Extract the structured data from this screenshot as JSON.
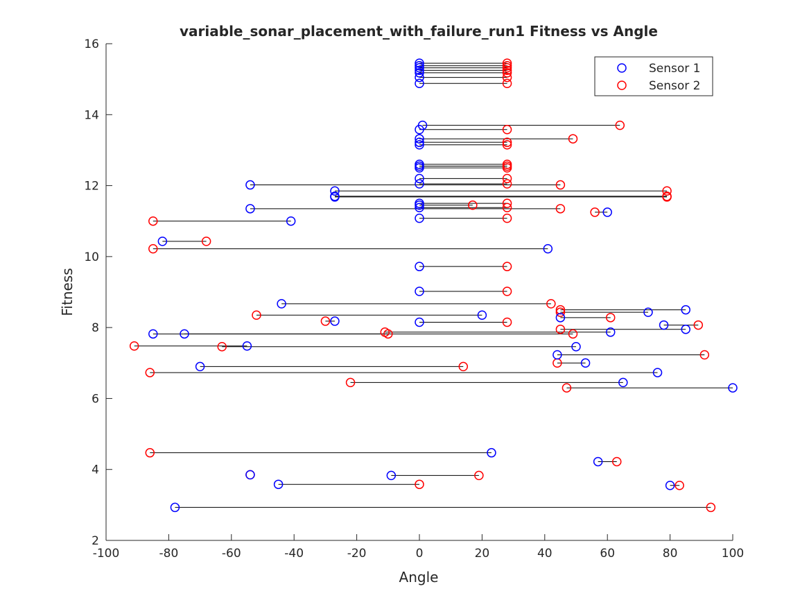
{
  "chart_data": {
    "type": "scatter",
    "title": "variable_sonar_placement_with_failure_run1 Fitness vs Angle",
    "xlabel": "Angle",
    "ylabel": "Fitness",
    "xlim": [
      -100,
      100
    ],
    "ylim": [
      2,
      16
    ],
    "xticks": [
      -100,
      -80,
      -60,
      -40,
      -20,
      0,
      20,
      40,
      60,
      80,
      100
    ],
    "yticks": [
      2,
      4,
      6,
      8,
      10,
      12,
      14,
      16
    ],
    "grid": false,
    "legend_position": "top-right",
    "colors": {
      "sensor1": "#0000ff",
      "sensor2": "#ff0000",
      "connector": "#000000",
      "axis": "#262626"
    },
    "series": [
      {
        "name": "Sensor 1",
        "color": "#0000ff"
      },
      {
        "name": "Sensor 2",
        "color": "#ff0000"
      }
    ],
    "pairs": [
      {
        "fitness": 15.45,
        "sensor1": 0,
        "sensor2": 28
      },
      {
        "fitness": 15.38,
        "sensor1": 0,
        "sensor2": 28
      },
      {
        "fitness": 15.32,
        "sensor1": 0,
        "sensor2": 28
      },
      {
        "fitness": 15.25,
        "sensor1": 0,
        "sensor2": 28
      },
      {
        "fitness": 15.18,
        "sensor1": 0,
        "sensor2": 28
      },
      {
        "fitness": 15.05,
        "sensor1": 0,
        "sensor2": 28
      },
      {
        "fitness": 14.88,
        "sensor1": 0,
        "sensor2": 28
      },
      {
        "fitness": 13.7,
        "sensor1": 1,
        "sensor2": 64
      },
      {
        "fitness": 13.58,
        "sensor1": 0,
        "sensor2": 28
      },
      {
        "fitness": 13.32,
        "sensor1": 0,
        "sensor2": 49
      },
      {
        "fitness": 13.22,
        "sensor1": 0,
        "sensor2": 28
      },
      {
        "fitness": 13.15,
        "sensor1": 0,
        "sensor2": 28
      },
      {
        "fitness": 12.6,
        "sensor1": 0,
        "sensor2": 28
      },
      {
        "fitness": 12.55,
        "sensor1": 0,
        "sensor2": 28
      },
      {
        "fitness": 12.5,
        "sensor1": 0,
        "sensor2": 28
      },
      {
        "fitness": 12.2,
        "sensor1": 0,
        "sensor2": 28
      },
      {
        "fitness": 12.05,
        "sensor1": 0,
        "sensor2": 28
      },
      {
        "fitness": 12.02,
        "sensor1": -54,
        "sensor2": 45
      },
      {
        "fitness": 11.85,
        "sensor1": -27,
        "sensor2": 79
      },
      {
        "fitness": 11.7,
        "sensor1": -27,
        "sensor2": 79
      },
      {
        "fitness": 11.68,
        "sensor1": -27,
        "sensor2": 79
      },
      {
        "fitness": 11.5,
        "sensor1": 0,
        "sensor2": 28
      },
      {
        "fitness": 11.45,
        "sensor1": 0,
        "sensor2": 17
      },
      {
        "fitness": 11.38,
        "sensor1": 0,
        "sensor2": 28
      },
      {
        "fitness": 11.35,
        "sensor1": -54,
        "sensor2": 45
      },
      {
        "fitness": 11.25,
        "sensor1": 60,
        "sensor2": 56
      },
      {
        "fitness": 11.08,
        "sensor1": 0,
        "sensor2": 28
      },
      {
        "fitness": 11.0,
        "sensor1": -41,
        "sensor2": -85
      },
      {
        "fitness": 10.43,
        "sensor1": -82,
        "sensor2": -68
      },
      {
        "fitness": 10.22,
        "sensor1": 41,
        "sensor2": -85
      },
      {
        "fitness": 9.72,
        "sensor1": 0,
        "sensor2": 28
      },
      {
        "fitness": 9.02,
        "sensor1": 0,
        "sensor2": 28
      },
      {
        "fitness": 8.67,
        "sensor1": -44,
        "sensor2": 42
      },
      {
        "fitness": 8.5,
        "sensor1": 85,
        "sensor2": 45
      },
      {
        "fitness": 8.43,
        "sensor1": 73,
        "sensor2": 45
      },
      {
        "fitness": 8.35,
        "sensor1": 20,
        "sensor2": -52
      },
      {
        "fitness": 8.28,
        "sensor1": 45,
        "sensor2": 61
      },
      {
        "fitness": 8.18,
        "sensor1": -27,
        "sensor2": -30
      },
      {
        "fitness": 8.15,
        "sensor1": 0,
        "sensor2": 28
      },
      {
        "fitness": 8.07,
        "sensor1": 78,
        "sensor2": 89
      },
      {
        "fitness": 7.95,
        "sensor1": 85,
        "sensor2": 45
      },
      {
        "fitness": 7.87,
        "sensor1": 61,
        "sensor2": -11
      },
      {
        "fitness": 7.82,
        "sensor1": -75,
        "sensor2": 49
      },
      {
        "fitness": 7.82,
        "sensor1": -85,
        "sensor2": -10
      },
      {
        "fitness": 7.48,
        "sensor1": -55,
        "sensor2": -91
      },
      {
        "fitness": 7.46,
        "sensor1": 50,
        "sensor2": -63
      },
      {
        "fitness": 7.23,
        "sensor1": 44,
        "sensor2": 91
      },
      {
        "fitness": 7.0,
        "sensor1": 53,
        "sensor2": 44
      },
      {
        "fitness": 6.9,
        "sensor1": -70,
        "sensor2": 14
      },
      {
        "fitness": 6.73,
        "sensor1": 76,
        "sensor2": -86
      },
      {
        "fitness": 6.45,
        "sensor1": 65,
        "sensor2": -22
      },
      {
        "fitness": 6.3,
        "sensor1": 100,
        "sensor2": 47
      },
      {
        "fitness": 4.47,
        "sensor1": 23,
        "sensor2": -86
      },
      {
        "fitness": 4.22,
        "sensor1": 57,
        "sensor2": 63
      },
      {
        "fitness": 3.85,
        "sensor1": -54,
        "sensor2": -54
      },
      {
        "fitness": 3.83,
        "sensor1": -9,
        "sensor2": 19
      },
      {
        "fitness": 3.58,
        "sensor1": -45,
        "sensor2": 0
      },
      {
        "fitness": 3.55,
        "sensor1": 80,
        "sensor2": 83
      },
      {
        "fitness": 2.93,
        "sensor1": -78,
        "sensor2": 93
      }
    ]
  }
}
